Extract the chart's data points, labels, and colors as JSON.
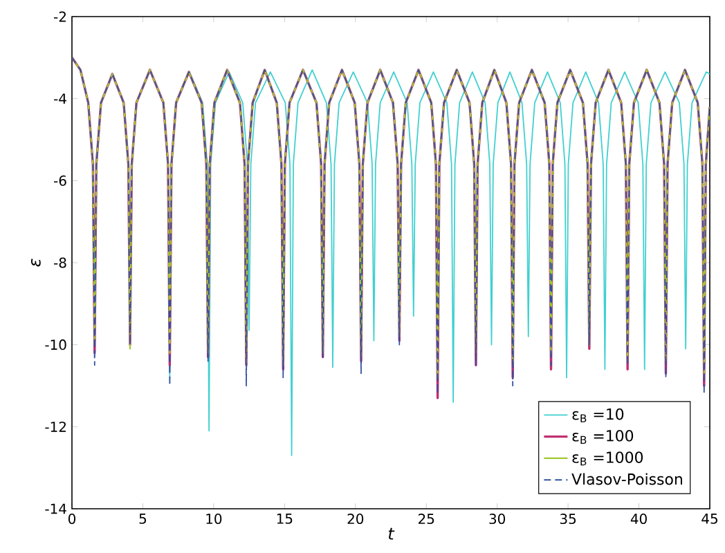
{
  "chart_data": {
    "type": "line",
    "xlabel": "t",
    "ylabel": "ε",
    "xlim": [
      0,
      45
    ],
    "ylim": [
      -14,
      -2
    ],
    "xticks": [
      0,
      5,
      10,
      15,
      20,
      25,
      30,
      35,
      40,
      45
    ],
    "yticks": [
      -14,
      -12,
      -10,
      -8,
      -6,
      -4,
      -2
    ],
    "grid": false,
    "legend": "bottom right",
    "marker": "none",
    "x": [
      0,
      0.6,
      1.15,
      1.48,
      1.6,
      1.72,
      2.05,
      2.85,
      3.65,
      3.98,
      4.1,
      4.22,
      4.55,
      5.5,
      6.45,
      6.78,
      6.9,
      7.02,
      7.35,
      8.25,
      9.15,
      9.48,
      9.6,
      9.72,
      10.05,
      10.95,
      11.85,
      12.18,
      12.3,
      12.42,
      12.75,
      13.6,
      14.45,
      14.78,
      14.9,
      15.02,
      15.35,
      16.3,
      17.25,
      17.58,
      17.7,
      17.82,
      18.15,
      19.05,
      19.95,
      20.28,
      20.4,
      20.52,
      20.85,
      21.75,
      22.65,
      22.98,
      23.1,
      23.22,
      23.55,
      24.45,
      25.35,
      25.68,
      25.8,
      25.92,
      26.25,
      27.15,
      28.05,
      28.38,
      28.5,
      28.62,
      28.95,
      29.8,
      30.65,
      30.98,
      31.1,
      31.22,
      31.55,
      32.45,
      33.35,
      33.68,
      33.8,
      33.92,
      34.25,
      35.15,
      36.05,
      36.38,
      36.5,
      36.62,
      36.95,
      37.85,
      38.75,
      39.08,
      39.2,
      39.32,
      39.65,
      40.55,
      41.45,
      41.78,
      41.9,
      42.02,
      42.35,
      43.25,
      44.15,
      44.48,
      44.6,
      44.72,
      45
    ],
    "series": [
      {
        "name": "ε$_{B}$ =10",
        "color": "#40d0d0",
        "line_style": "solid",
        "x": [
          6.78,
          6.9,
          7.02,
          7.35,
          8.29,
          9.22,
          9.55,
          9.67,
          9.79,
          10.12,
          11.09,
          12.05,
          12.38,
          12.5,
          12.62,
          12.95,
          14.0,
          15.05,
          15.38,
          15.5,
          15.62,
          15.95,
          16.95,
          17.95,
          18.28,
          18.4,
          18.52,
          18.85,
          19.85,
          20.85,
          21.18,
          21.3,
          21.42,
          21.75,
          22.7,
          23.65,
          23.98,
          24.1,
          24.22,
          24.55,
          25.5,
          26.45,
          26.78,
          26.9,
          27.02,
          27.35,
          28.25,
          29.15,
          29.48,
          29.6,
          29.72,
          30.05,
          30.9,
          31.75,
          32.08,
          32.2,
          32.32,
          32.65,
          33.55,
          34.45,
          34.78,
          34.9,
          35.02,
          35.35,
          36.25,
          37.15,
          37.48,
          37.6,
          37.72,
          38.05,
          39.0,
          39.95,
          40.28,
          40.4,
          40.52,
          40.85,
          41.85,
          42.85,
          43.18,
          43.3,
          43.42,
          43.75,
          44.75,
          45
        ],
        "values": [
          -5.6,
          -10.8,
          -5.6,
          -4.1,
          -3.35,
          -4.1,
          -5.6,
          -12.1,
          -5.6,
          -4.1,
          -3.35,
          -4.1,
          -5.6,
          -9.65,
          -5.6,
          -4.1,
          -3.35,
          -4.1,
          -5.6,
          -12.7,
          -5.6,
          -4.1,
          -3.3,
          -4.1,
          -5.6,
          -10.55,
          -5.6,
          -4.1,
          -3.35,
          -4.1,
          -5.6,
          -9.9,
          -5.6,
          -4.1,
          -3.35,
          -4.1,
          -5.6,
          -9.3,
          -5.6,
          -4.1,
          -3.35,
          -4.1,
          -5.6,
          -11.4,
          -5.6,
          -4.1,
          -3.35,
          -4.1,
          -5.6,
          -10.0,
          -5.6,
          -4.1,
          -3.35,
          -4.1,
          -5.6,
          -9.8,
          -5.6,
          -4.1,
          -3.35,
          -4.1,
          -5.6,
          -10.8,
          -5.6,
          -4.1,
          -3.35,
          -4.1,
          -5.6,
          -10.6,
          -5.6,
          -4.1,
          -3.35,
          -4.1,
          -5.6,
          -10.6,
          -5.6,
          -4.1,
          -3.35,
          -4.1,
          -5.6,
          -10.1,
          -5.6,
          -4.1,
          -3.35,
          -3.4
        ]
      },
      {
        "name": "ε$_{B}$ =100",
        "color": "#c03070",
        "line_style": "solid",
        "values": [
          -3.0,
          -3.3,
          -4.1,
          -5.6,
          -10.2,
          -5.6,
          -4.1,
          -3.4,
          -4.1,
          -5.6,
          -10.0,
          -5.6,
          -4.1,
          -3.3,
          -4.1,
          -5.6,
          -10.5,
          -5.6,
          -4.1,
          -3.35,
          -4.1,
          -5.6,
          -10.3,
          -5.6,
          -4.1,
          -3.3,
          -4.1,
          -5.6,
          -10.5,
          -5.6,
          -4.1,
          -3.3,
          -4.1,
          -5.6,
          -10.6,
          -5.6,
          -4.1,
          -3.3,
          -4.1,
          -5.6,
          -10.3,
          -5.6,
          -4.1,
          -3.3,
          -4.1,
          -5.6,
          -10.4,
          -5.6,
          -4.1,
          -3.3,
          -4.1,
          -5.6,
          -9.9,
          -5.6,
          -4.1,
          -3.3,
          -4.1,
          -5.6,
          -11.3,
          -5.6,
          -4.1,
          -3.3,
          -4.1,
          -5.6,
          -10.5,
          -5.6,
          -4.1,
          -3.3,
          -4.1,
          -5.6,
          -10.8,
          -5.6,
          -4.1,
          -3.3,
          -4.1,
          -5.6,
          -10.6,
          -5.6,
          -4.1,
          -3.3,
          -4.1,
          -5.6,
          -10.1,
          -5.6,
          -4.1,
          -3.3,
          -4.1,
          -5.6,
          -10.6,
          -5.6,
          -4.1,
          -3.3,
          -4.1,
          -5.6,
          -10.7,
          -5.6,
          -4.1,
          -3.3,
          -4.1,
          -5.6,
          -11.0,
          -5.6,
          -4.2
        ]
      },
      {
        "name": "ε$_{B}$ =1000",
        "color": "#a0c830",
        "line_style": "solid",
        "values": [
          -3.0,
          -3.3,
          -4.1,
          -5.6,
          -10.0,
          -5.6,
          -4.1,
          -3.4,
          -4.1,
          -5.6,
          -10.1,
          -5.6,
          -4.1,
          -3.3,
          -4.1,
          -5.6,
          -10.2,
          -5.6,
          -4.1,
          -3.35,
          -4.1,
          -5.6,
          -10.2,
          -5.6,
          -4.1,
          -3.3,
          -4.1,
          -5.6,
          -10.5,
          -5.6,
          -4.1,
          -3.3,
          -4.1,
          -5.6,
          -10.5,
          -5.6,
          -4.1,
          -3.3,
          -4.1,
          -5.6,
          -10.2,
          -5.6,
          -4.1,
          -3.3,
          -4.1,
          -5.6,
          -10.3,
          -5.6,
          -4.1,
          -3.3,
          -4.1,
          -5.6,
          -9.8,
          -5.6,
          -4.1,
          -3.3,
          -4.1,
          -5.6,
          -10.8,
          -5.6,
          -4.1,
          -3.3,
          -4.1,
          -5.6,
          -10.2,
          -5.6,
          -4.1,
          -3.3,
          -4.1,
          -5.6,
          -10.5,
          -5.6,
          -4.1,
          -3.3,
          -4.1,
          -5.6,
          -10.2,
          -5.6,
          -4.1,
          -3.3,
          -4.1,
          -5.6,
          -10.0,
          -5.6,
          -4.1,
          -3.3,
          -4.1,
          -5.6,
          -10.4,
          -5.6,
          -4.1,
          -3.3,
          -4.1,
          -5.6,
          -10.4,
          -5.6,
          -4.1,
          -3.3,
          -4.1,
          -5.6,
          -10.8,
          -5.6,
          -4.2
        ]
      },
      {
        "name": "Vlasov-Poisson",
        "color": "#3050a0",
        "line_style": "dashed",
        "values": [
          -3.0,
          -3.3,
          -4.1,
          -5.6,
          -10.5,
          -5.6,
          -4.1,
          -3.4,
          -4.1,
          -5.6,
          -10.0,
          -5.6,
          -4.1,
          -3.3,
          -4.1,
          -5.6,
          -11.0,
          -5.6,
          -4.1,
          -3.35,
          -4.1,
          -5.6,
          -10.4,
          -5.6,
          -4.1,
          -3.3,
          -4.1,
          -5.6,
          -11.0,
          -5.6,
          -4.1,
          -3.3,
          -4.1,
          -5.6,
          -10.8,
          -5.6,
          -4.1,
          -3.3,
          -4.1,
          -5.6,
          -10.3,
          -5.6,
          -4.1,
          -3.3,
          -4.1,
          -5.6,
          -10.7,
          -5.6,
          -4.1,
          -3.3,
          -4.1,
          -5.6,
          -10.0,
          -5.6,
          -4.1,
          -3.3,
          -4.1,
          -5.6,
          -11.2,
          -5.6,
          -4.1,
          -3.3,
          -4.1,
          -5.6,
          -10.5,
          -5.6,
          -4.1,
          -3.3,
          -4.1,
          -5.6,
          -11.0,
          -5.6,
          -4.1,
          -3.3,
          -4.1,
          -5.6,
          -10.5,
          -5.6,
          -4.1,
          -3.3,
          -4.1,
          -5.6,
          -10.0,
          -5.6,
          -4.1,
          -3.3,
          -4.1,
          -5.6,
          -10.5,
          -5.6,
          -4.1,
          -3.3,
          -4.1,
          -5.6,
          -10.8,
          -5.6,
          -4.1,
          -3.3,
          -4.1,
          -5.6,
          -11.2,
          -5.6,
          -4.2
        ]
      }
    ]
  }
}
